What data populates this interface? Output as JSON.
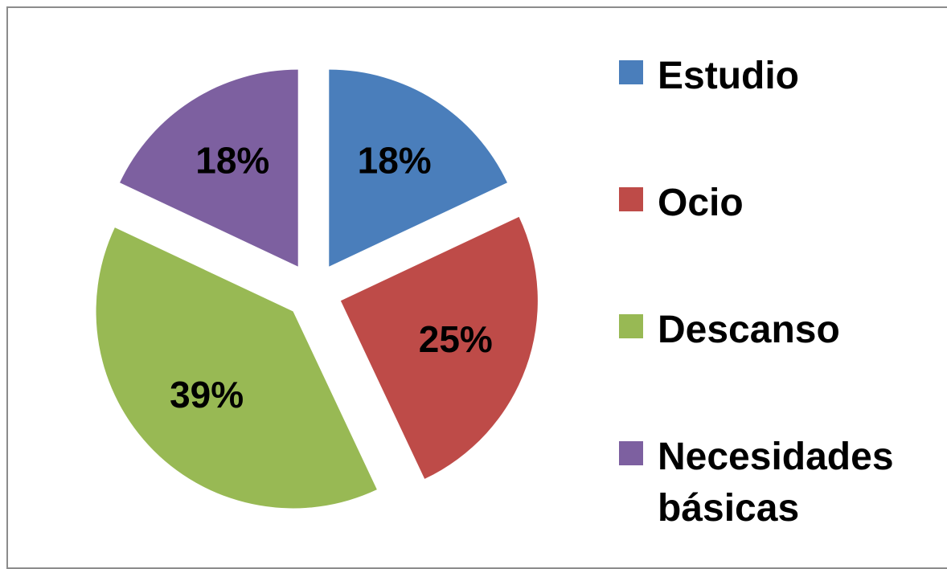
{
  "chart_data": {
    "type": "pie",
    "categories": [
      "Estudio",
      "Ocio",
      "Descanso",
      "Necesidades básicas"
    ],
    "values": [
      18,
      25,
      39,
      18
    ],
    "value_labels": [
      "18%",
      "25%",
      "39%",
      "18%"
    ],
    "colors": [
      "#4a7ebb",
      "#be4b48",
      "#98b954",
      "#7d60a0"
    ],
    "legend": "right"
  }
}
